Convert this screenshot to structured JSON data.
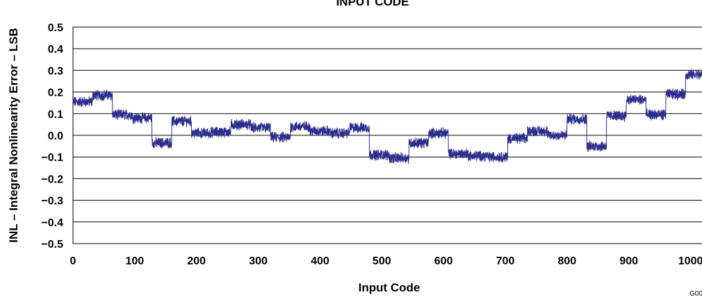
{
  "chart_data": {
    "type": "line",
    "title": "INPUT CODE",
    "xlabel": "Input Code",
    "ylabel": "INL – Integral Nonlinearity Error – LSB",
    "xlim": [
      0,
      1023
    ],
    "ylim": [
      -0.5,
      0.5
    ],
    "grid": "horizontal",
    "x_ticks": [
      "0",
      "100",
      "200",
      "300",
      "400",
      "500",
      "600",
      "700",
      "800",
      "900",
      "1000"
    ],
    "y_ticks": [
      "0.5",
      "0.4",
      "0.3",
      "0.2",
      "0.1",
      "0.0",
      "−0.1",
      "−0.2",
      "−0.3",
      "−0.4",
      "−0.5"
    ],
    "figure_code": "G00",
    "line_color": "#2b2e8c",
    "series": [
      {
        "segments": [
          {
            "x0": 0,
            "x1": 32,
            "y": 0.155
          },
          {
            "x0": 32,
            "x1": 64,
            "y": 0.185
          },
          {
            "x0": 64,
            "x1": 96,
            "y": 0.095
          },
          {
            "x0": 96,
            "x1": 128,
            "y": 0.08
          },
          {
            "x0": 128,
            "x1": 160,
            "y": -0.035
          },
          {
            "x0": 160,
            "x1": 192,
            "y": 0.065
          },
          {
            "x0": 192,
            "x1": 224,
            "y": 0.01
          },
          {
            "x0": 224,
            "x1": 256,
            "y": 0.015
          },
          {
            "x0": 256,
            "x1": 288,
            "y": 0.05
          },
          {
            "x0": 288,
            "x1": 320,
            "y": 0.035
          },
          {
            "x0": 320,
            "x1": 352,
            "y": -0.01
          },
          {
            "x0": 352,
            "x1": 384,
            "y": 0.04
          },
          {
            "x0": 384,
            "x1": 416,
            "y": 0.02
          },
          {
            "x0": 416,
            "x1": 448,
            "y": 0.01
          },
          {
            "x0": 448,
            "x1": 480,
            "y": 0.035
          },
          {
            "x0": 480,
            "x1": 512,
            "y": -0.09
          },
          {
            "x0": 512,
            "x1": 544,
            "y": -0.105
          },
          {
            "x0": 544,
            "x1": 576,
            "y": -0.035
          },
          {
            "x0": 576,
            "x1": 608,
            "y": 0.01
          },
          {
            "x0": 608,
            "x1": 640,
            "y": -0.085
          },
          {
            "x0": 640,
            "x1": 672,
            "y": -0.095
          },
          {
            "x0": 672,
            "x1": 704,
            "y": -0.1
          },
          {
            "x0": 704,
            "x1": 736,
            "y": -0.015
          },
          {
            "x0": 736,
            "x1": 768,
            "y": 0.02
          },
          {
            "x0": 768,
            "x1": 800,
            "y": 0.0
          },
          {
            "x0": 800,
            "x1": 832,
            "y": 0.075
          },
          {
            "x0": 832,
            "x1": 864,
            "y": -0.05
          },
          {
            "x0": 864,
            "x1": 896,
            "y": 0.09
          },
          {
            "x0": 896,
            "x1": 928,
            "y": 0.165
          },
          {
            "x0": 928,
            "x1": 960,
            "y": 0.095
          },
          {
            "x0": 960,
            "x1": 992,
            "y": 0.19
          },
          {
            "x0": 992,
            "x1": 1023,
            "y": 0.28
          }
        ]
      }
    ]
  }
}
